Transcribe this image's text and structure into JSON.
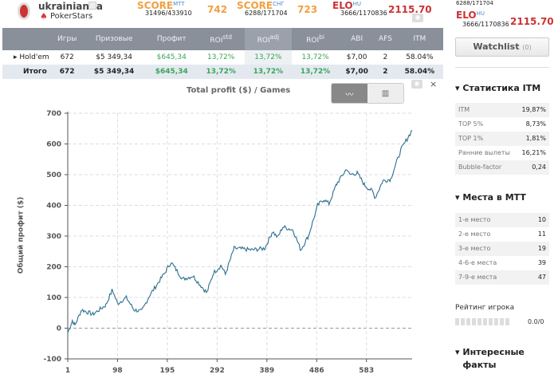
{
  "header": {
    "username": "ukrainianfla",
    "room": "PokerStars",
    "scores": [
      {
        "label": "SCORE",
        "sup": "MTT",
        "sub": "31496/433910",
        "value": "742"
      },
      {
        "label": "SCORE",
        "sup": "СНГ",
        "sub": "6288/171704",
        "value": "723"
      },
      {
        "label": "ELO",
        "sup": "HU",
        "sub": "3666/1170836",
        "value": "2115.70"
      }
    ]
  },
  "table": {
    "headers": [
      "",
      "Игры",
      "Призовые",
      "Профит",
      "ROI",
      "ROI",
      "ROI",
      "ABI",
      "AFS",
      "ITM"
    ],
    "roi_sups": [
      "std",
      "adj",
      "bi"
    ],
    "rows": [
      [
        "Hold'em",
        "672",
        "$5 349,34",
        "$645,34",
        "13,72%",
        "13,72%",
        "13,72%",
        "$7,00",
        "2",
        "58.04%"
      ],
      [
        "Итого",
        "672",
        "$5 349,34",
        "$645,34",
        "13,72%",
        "13,72%",
        "13,72%",
        "$7,00",
        "2",
        "58.04%"
      ]
    ]
  },
  "chart_toggle": {
    "line": "line-chart-icon",
    "bar": "bar-chart-icon"
  },
  "close": "×",
  "chart_data": {
    "type": "line",
    "title": "Total profit ($) / Games",
    "xlabel": "",
    "ylabel": "Общий профит ($)",
    "ylim": [
      -100,
      700
    ],
    "xlim": [
      1,
      672
    ],
    "yticks": [
      -100,
      0,
      100,
      200,
      300,
      400,
      500,
      600,
      700
    ],
    "xticks": [
      1,
      98,
      195,
      292,
      389,
      486,
      583
    ],
    "grid": true,
    "color": "#2a6f8f",
    "series": [
      {
        "name": "Total profit",
        "x": [
          1,
          10,
          15,
          28,
          50,
          75,
          88,
          98,
          115,
          130,
          145,
          160,
          190,
          202,
          225,
          245,
          272,
          285,
          300,
          308,
          325,
          360,
          385,
          400,
          410,
          420,
          440,
          455,
          470,
          488,
          500,
          510,
          525,
          545,
          550,
          565,
          580,
          595,
          600,
          615,
          630,
          650,
          660,
          672
        ],
        "y": [
          -15,
          25,
          10,
          60,
          45,
          75,
          125,
          80,
          100,
          60,
          55,
          105,
          180,
          215,
          160,
          170,
          115,
          180,
          205,
          175,
          260,
          255,
          260,
          315,
          295,
          330,
          320,
          255,
          300,
          400,
          420,
          405,
          470,
          520,
          500,
          505,
          465,
          445,
          425,
          480,
          485,
          580,
          610,
          645
        ]
      }
    ]
  },
  "sidebar": {
    "top_sub": "6288/171704",
    "elo": {
      "label": "ELO",
      "sup": "HU",
      "sub": "3666/1170836",
      "value": "2115.70"
    },
    "watchlist": "Watchlist",
    "watchlist_count": "(0)",
    "itm_title": "Статистика ITM",
    "itm": [
      [
        "ITM",
        "19,87%"
      ],
      [
        "TOP 5%",
        "8,73%"
      ],
      [
        "TOP 1%",
        "1,81%"
      ],
      [
        "Ранние вылеты",
        "16,21%"
      ],
      [
        "Bubble-factor",
        "0,24"
      ]
    ],
    "places_title": "Места в MTT",
    "places": [
      [
        "1-е место",
        "10"
      ],
      [
        "2-е место",
        "11"
      ],
      [
        "3-е место",
        "19"
      ],
      [
        "4-6-е места",
        "39"
      ],
      [
        "7-9-е места",
        "47"
      ]
    ],
    "rating_label": "Рейтинг игрока",
    "rating_value": "0.0/0",
    "facts_title": "Интересные факты"
  }
}
